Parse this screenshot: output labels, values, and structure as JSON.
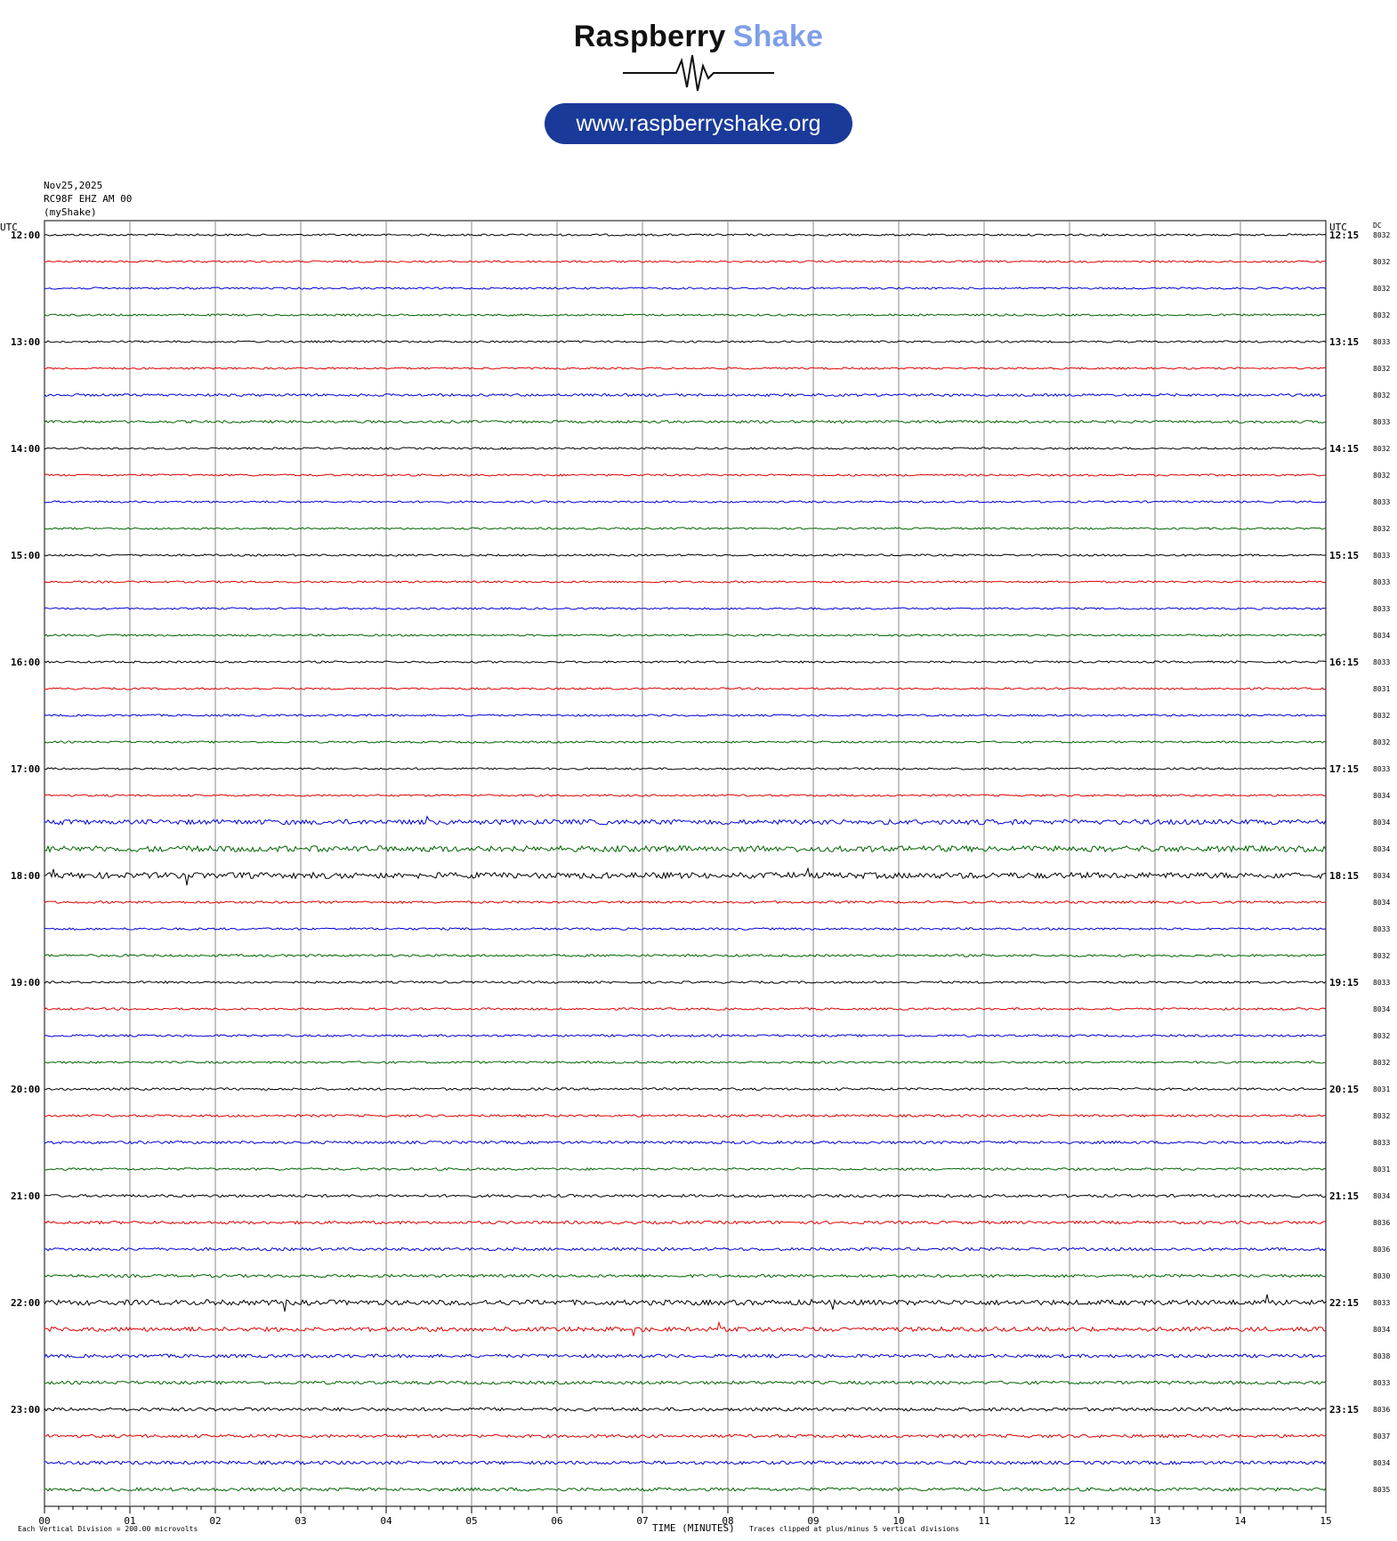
{
  "logo": {
    "word1": "Raspberry",
    "word2": "Shake",
    "url": "www.raspberryshake.org",
    "word1_color": "#111111",
    "word2_color": "#7f9ee8",
    "pill_color": "#1a3a9a"
  },
  "header": {
    "date": "Nov25,2025",
    "station": "RC98F EHZ AM 00",
    "network": "(myShake)"
  },
  "chart_data": {
    "type": "line",
    "title": "",
    "xlabel": "TIME (MINUTES)",
    "x_ticks": [
      "00",
      "01",
      "02",
      "03",
      "04",
      "05",
      "06",
      "07",
      "08",
      "09",
      "10",
      "11",
      "12",
      "13",
      "14",
      "15"
    ],
    "xlim": [
      0,
      15
    ],
    "left_axis_title": "UTC",
    "right_axis_title": "UTC",
    "dc_title": "DC",
    "left_hour_labels": [
      "12:00",
      "13:00",
      "14:00",
      "15:00",
      "16:00",
      "17:00",
      "18:00",
      "19:00",
      "20:00",
      "21:00",
      "22:00",
      "23:00"
    ],
    "right_hour_labels": [
      "12:15",
      "13:15",
      "14:15",
      "15:15",
      "16:15",
      "17:15",
      "18:15",
      "19:15",
      "20:15",
      "21:15",
      "22:15",
      "23:15"
    ],
    "trace_colors": [
      "#000000",
      "#e00000",
      "#0000d8",
      "#006400"
    ],
    "dc_values": [
      "8032",
      "8032",
      "8032",
      "8032",
      "8033",
      "8032",
      "8032",
      "8033",
      "8032",
      "8032",
      "8033",
      "8032",
      "8033",
      "8033",
      "8033",
      "8034",
      "8033",
      "8031",
      "8032",
      "8032",
      "8033",
      "8034",
      "8034",
      "8034",
      "8034",
      "8034",
      "8033",
      "8032",
      "8033",
      "8034",
      "8032",
      "8032",
      "8031",
      "8032",
      "8033",
      "8031",
      "8034",
      "8036",
      "8036",
      "8030",
      "8033",
      "8034",
      "8038",
      "8033",
      "8036",
      "8037",
      "8034",
      "8035"
    ],
    "activity": [
      1,
      1,
      1,
      1,
      1,
      1,
      1.3,
      1.3,
      1,
      1,
      1,
      1,
      1,
      1,
      1,
      1,
      1,
      1,
      1,
      1,
      1,
      1,
      2.5,
      3,
      3,
      1.2,
      1.1,
      1.2,
      1.1,
      1.1,
      1.1,
      1.1,
      1.2,
      1.2,
      1.4,
      1.2,
      1.4,
      1.5,
      1.5,
      1.5,
      2.6,
      2.2,
      1.7,
      1.6,
      1.7,
      1.6,
      1.7,
      1.7
    ],
    "footer_left": "Each Vertical Division =  200.00 microvolts",
    "footer_right": "Traces clipped at plus/minus 5 vertical divisions"
  }
}
